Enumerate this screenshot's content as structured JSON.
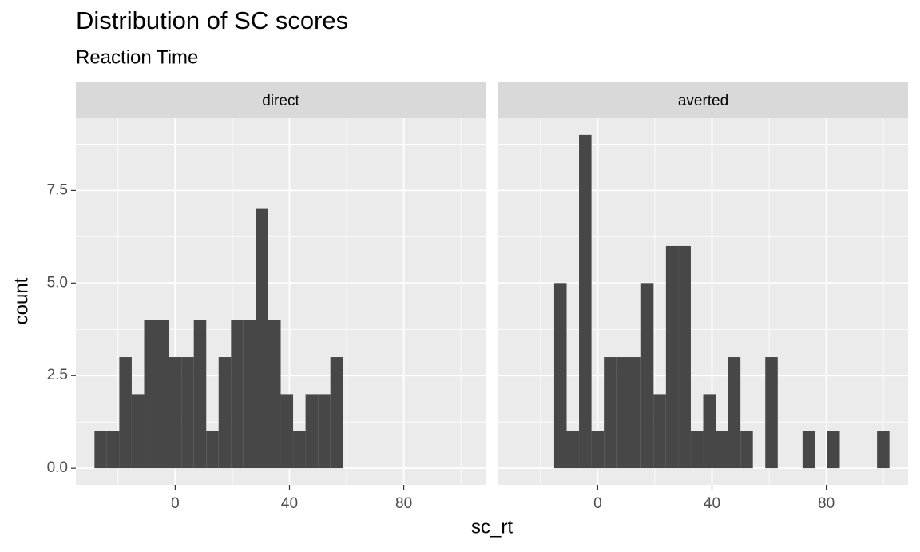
{
  "chart_data": {
    "type": "histogram",
    "title": "Distribution of SC scores",
    "subtitle": "Reaction Time",
    "x_label": "sc_rt",
    "y_label": "count",
    "facet": true,
    "grid": true,
    "bins": [
      -28.25,
      -23.91,
      -19.56,
      -15.22,
      -10.87,
      -6.53,
      -2.18,
      2.17,
      6.51,
      10.86,
      15.2,
      19.55,
      23.89,
      28.24,
      32.58,
      36.93,
      41.27,
      45.62,
      49.96,
      54.31,
      58.65,
      63.0,
      67.34,
      71.69,
      76.03,
      80.38,
      84.72,
      89.07,
      93.41,
      97.76,
      102.1
    ],
    "series": [
      {
        "name": "direct",
        "color": "#474747",
        "values": [
          1,
          1,
          3,
          2,
          4,
          4,
          3,
          3,
          4,
          1,
          3,
          4,
          4,
          7,
          4,
          2,
          1,
          2,
          2,
          3,
          0,
          0,
          0,
          0,
          0,
          0,
          0,
          0,
          0,
          0
        ]
      },
      {
        "name": "averted",
        "color": "#474747",
        "values": [
          0,
          0,
          0,
          5,
          1,
          9,
          1,
          3,
          3,
          3,
          5,
          2,
          6,
          6,
          1,
          2,
          1,
          3,
          1,
          0,
          3,
          0,
          0,
          1,
          0,
          1,
          0,
          0,
          0,
          1
        ]
      }
    ],
    "xlim": [
      -34.77,
      108.62
    ],
    "xticks": [
      0,
      40,
      80
    ],
    "ylim": [
      -0.45,
      9.45
    ],
    "yticks": [
      {
        "value": 0,
        "label": "0.0"
      },
      {
        "value": 2.5,
        "label": "2.5"
      },
      {
        "value": 5,
        "label": "5.0"
      },
      {
        "value": 7.5,
        "label": "7.5"
      }
    ]
  }
}
